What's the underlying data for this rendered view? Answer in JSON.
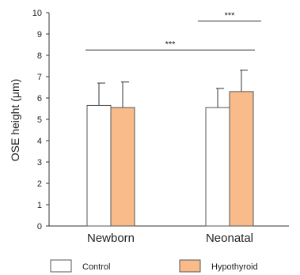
{
  "chart_data": {
    "type": "bar",
    "title": "",
    "xlabel": "",
    "ylabel": "OSE height (μm)",
    "ylim": [
      0,
      10
    ],
    "yticks": [
      "0",
      "1",
      "2",
      "3",
      "4",
      "5",
      "6",
      "7",
      "8",
      "9",
      "10"
    ],
    "categories": [
      "Newborn",
      "Neonatal"
    ],
    "series": [
      {
        "name": "Control",
        "values": [
          5.65,
          5.55
        ],
        "errors": [
          1.05,
          0.9
        ],
        "color": "#ffffff"
      },
      {
        "name": "Hypothyroid",
        "values": [
          5.55,
          6.3
        ],
        "errors": [
          1.2,
          1.0
        ],
        "color": "#f9bb8a"
      }
    ],
    "significance": [
      {
        "label": "***",
        "from": "Newborn",
        "to": "Neonatal",
        "y": 8.25
      },
      {
        "label": "***",
        "from": "Neonatal-Control",
        "to": "Neonatal-Hypothyroid",
        "y": 9.6
      }
    ],
    "legend_position": "bottom",
    "grid": false
  }
}
